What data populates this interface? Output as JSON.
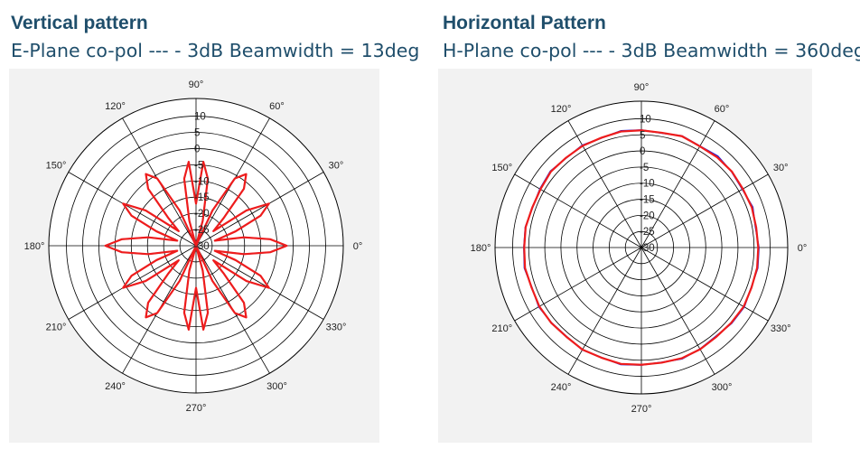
{
  "charts": [
    {
      "title": "Vertical pattern",
      "subtitle": "E-Plane co-pol --- - 3dB Beamwidth = 13deg"
    },
    {
      "title": "Horizontal Pattern",
      "subtitle": "H-Plane co-pol --- - 3dB Beamwidth = 360deg"
    }
  ],
  "chart_data": [
    {
      "type": "polar-line",
      "title": "Vertical pattern",
      "subtitle": "E-Plane co-pol --- - 3dB Beamwidth = 13deg",
      "angle_ticks": [
        "0°",
        "30°",
        "60°",
        "90°",
        "120°",
        "150°",
        "180°",
        "210°",
        "240°",
        "270°",
        "300°",
        "330°"
      ],
      "radial_ticks": [
        "10",
        "5",
        "0",
        "-5",
        "-10",
        "-15",
        "-20",
        "-25",
        "-30"
      ],
      "rlim": [
        -30,
        10
      ],
      "grid": true,
      "series_colors": [
        "#1a1adb",
        "#ee1c1c"
      ],
      "series": [
        {
          "color": "#1a1adb",
          "angles": [
            0,
            5,
            10,
            15,
            20,
            25,
            30,
            35,
            40,
            45,
            50,
            55,
            60,
            65,
            70,
            75,
            80,
            85,
            90,
            95,
            100,
            105,
            110,
            115,
            120,
            125,
            130,
            135,
            140,
            145,
            150,
            155,
            160,
            165,
            170,
            175,
            180,
            185,
            190,
            195,
            200,
            205,
            210,
            215,
            220,
            225,
            230,
            235,
            240,
            245,
            250,
            255,
            260,
            265,
            270,
            275,
            280,
            285,
            290,
            295,
            300,
            305,
            310,
            315,
            320,
            325,
            330,
            335,
            340,
            345,
            350,
            355
          ],
          "values": [
            -2,
            -7,
            -15,
            -24,
            -17,
            -8,
            -4,
            -11,
            -23,
            -18,
            -7,
            -3,
            -6,
            -18,
            -30,
            -22,
            -9,
            -4,
            -17,
            -4,
            -9,
            -22,
            -30,
            -18,
            -6,
            -3,
            -7,
            -18,
            -23,
            -11,
            -4,
            -8,
            -17,
            -24,
            -15,
            -7,
            -2,
            -7,
            -15,
            -24,
            -17,
            -8,
            -4,
            -11,
            -23,
            -18,
            -7,
            -3,
            -6,
            -18,
            -30,
            -22,
            -9,
            -4,
            -17,
            -4,
            -9,
            -22,
            -30,
            -18,
            -6,
            -3,
            -7,
            -18,
            -23,
            -11,
            -4,
            -8,
            -17,
            -24,
            -15,
            -7
          ]
        },
        {
          "color": "#ee1c1c",
          "angles": [
            0,
            5,
            10,
            15,
            20,
            25,
            30,
            35,
            40,
            45,
            50,
            55,
            60,
            65,
            70,
            75,
            80,
            85,
            90,
            95,
            100,
            105,
            110,
            115,
            120,
            125,
            130,
            135,
            140,
            145,
            150,
            155,
            160,
            165,
            170,
            175,
            180,
            185,
            190,
            195,
            200,
            205,
            210,
            215,
            220,
            225,
            230,
            235,
            240,
            245,
            250,
            255,
            260,
            265,
            270,
            275,
            280,
            285,
            290,
            295,
            300,
            305,
            310,
            315,
            320,
            325,
            330,
            335,
            340,
            345,
            350,
            355
          ],
          "values": [
            -2,
            -7,
            -15,
            -24,
            -17,
            -8,
            -4,
            -11,
            -23,
            -18,
            -7,
            -3,
            -6,
            -18,
            -30,
            -22,
            -9,
            -4,
            -17,
            -4,
            -9,
            -22,
            -30,
            -18,
            -6,
            -3,
            -7,
            -18,
            -23,
            -11,
            -4,
            -8,
            -17,
            -24,
            -15,
            -7,
            -2,
            -7,
            -15,
            -24,
            -17,
            -8,
            -4,
            -11,
            -23,
            -18,
            -7,
            -3,
            -6,
            -18,
            -30,
            -22,
            -9,
            -4,
            -17,
            -4,
            -9,
            -22,
            -30,
            -18,
            -6,
            -3,
            -7,
            -18,
            -23,
            -11,
            -4,
            -8,
            -17,
            -24,
            -15,
            -7
          ]
        }
      ]
    },
    {
      "type": "polar-line",
      "title": "Horizontal Pattern",
      "subtitle": "H-Plane co-pol --- - 3dB Beamwidth = 360deg",
      "angle_ticks": [
        "0°",
        "30°",
        "60°",
        "90°",
        "120°",
        "150°",
        "180°",
        "210°",
        "240°",
        "270°",
        "300°",
        "330°"
      ],
      "radial_ticks": [
        "10",
        "5",
        "0",
        "-5",
        "-10",
        "-15",
        "-20",
        "-25",
        "-30"
      ],
      "rlim": [
        -30,
        10
      ],
      "grid": true,
      "series_colors": [
        "#1a1adb",
        "#ee1c1c"
      ],
      "series": [
        {
          "color": "#1a1adb",
          "angles": [
            0,
            10,
            20,
            30,
            40,
            50,
            60,
            70,
            80,
            90,
            100,
            110,
            120,
            130,
            140,
            150,
            160,
            170,
            180,
            190,
            200,
            210,
            220,
            230,
            240,
            250,
            260,
            270,
            280,
            290,
            300,
            310,
            320,
            330,
            340,
            350
          ],
          "values": [
            6.5,
            6.0,
            6.8,
            6.2,
            6.6,
            7.0,
            6.4,
            6.9,
            6.1,
            6.5,
            6.8,
            6.2,
            6.7,
            6.3,
            6.9,
            6.4,
            6.0,
            6.6,
            6.5,
            6.9,
            6.2,
            6.8,
            6.4,
            6.1,
            6.7,
            6.3,
            6.9,
            6.5,
            6.2,
            6.8,
            6.4,
            6.0,
            6.6,
            6.9,
            6.3,
            6.7
          ]
        },
        {
          "color": "#ee1c1c",
          "angles": [
            0,
            10,
            20,
            30,
            40,
            50,
            60,
            70,
            80,
            90,
            100,
            110,
            120,
            130,
            140,
            150,
            160,
            170,
            180,
            190,
            200,
            210,
            220,
            230,
            240,
            250,
            260,
            270,
            280,
            290,
            300,
            310,
            320,
            330,
            340,
            350
          ],
          "values": [
            6.3,
            6.2,
            6.5,
            6.4,
            6.7,
            6.6,
            6.3,
            6.8,
            6.2,
            6.4,
            6.6,
            6.3,
            6.5,
            6.4,
            6.7,
            6.2,
            6.1,
            6.5,
            6.4,
            6.7,
            6.3,
            6.6,
            6.5,
            6.2,
            6.6,
            6.4,
            6.7,
            6.4,
            6.3,
            6.6,
            6.5,
            6.2,
            6.4,
            6.7,
            6.4,
            6.5
          ]
        }
      ]
    }
  ]
}
